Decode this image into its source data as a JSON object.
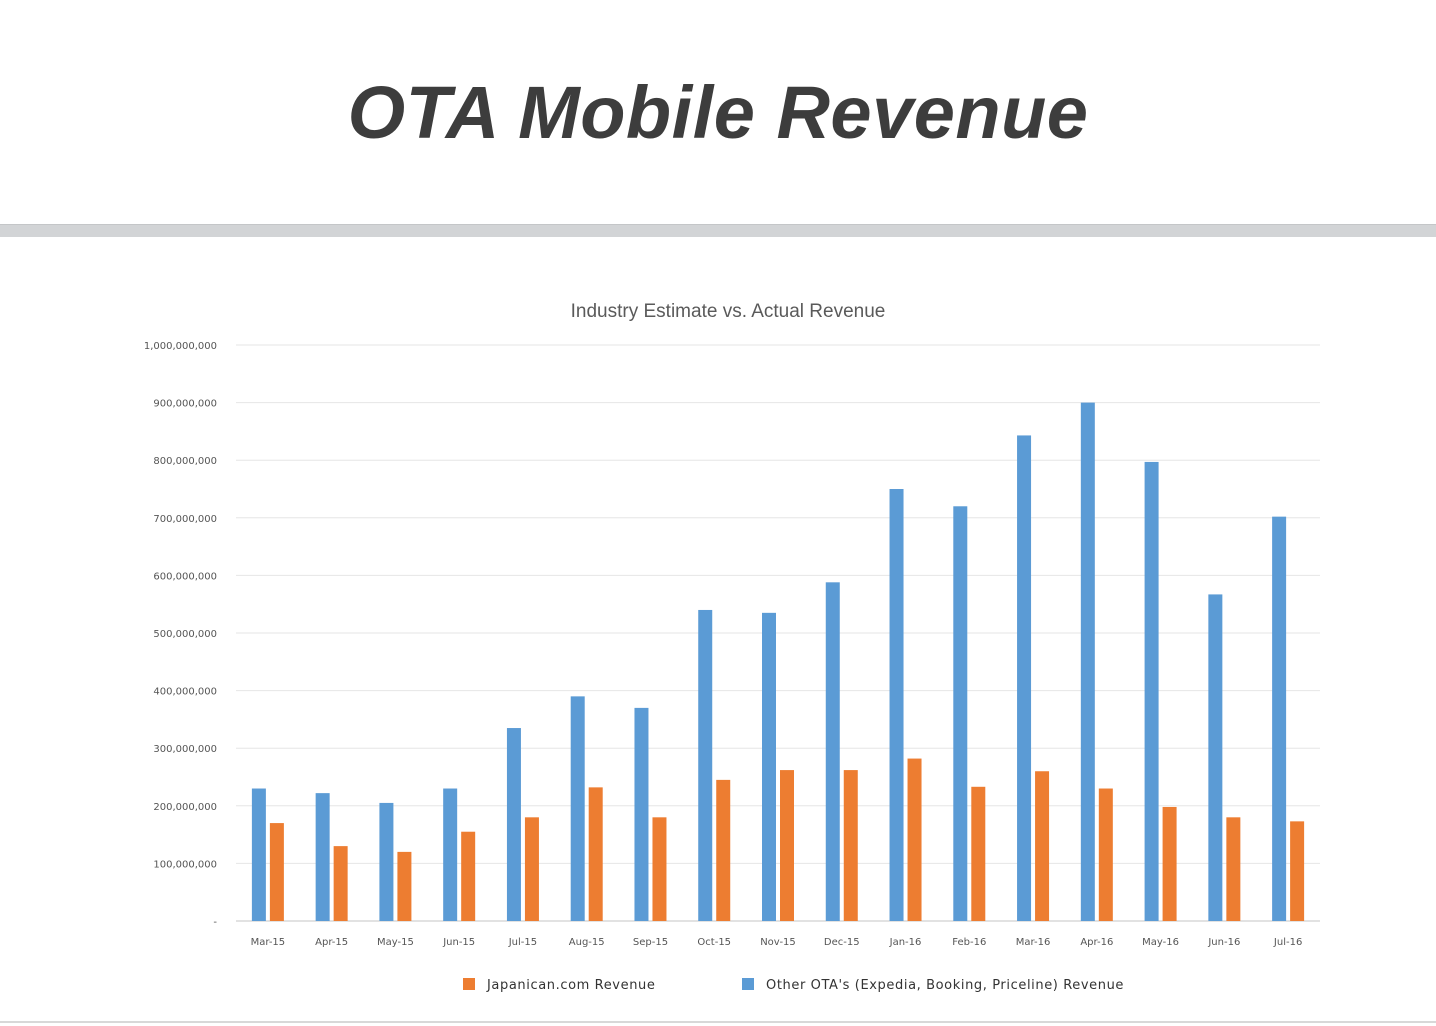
{
  "slide": {
    "title": "OTA Mobile Revenue"
  },
  "colors": {
    "japanican": "#ed7d31",
    "other": "#5b9bd5",
    "grid": "#e6e6e6",
    "title_text": "#3d3d3d"
  },
  "chart_data": {
    "type": "bar",
    "title": "Industry Estimate vs. Actual Revenue",
    "xlabel": "",
    "ylabel": "",
    "ylim": [
      0,
      1000000000
    ],
    "y_ticks": [
      0,
      100000000,
      200000000,
      300000000,
      400000000,
      500000000,
      600000000,
      700000000,
      800000000,
      900000000,
      1000000000
    ],
    "y_tick_labels": [
      "-",
      "100,000,000",
      "200,000,000",
      "300,000,000",
      "400,000,000",
      "500,000,000",
      "600,000,000",
      "700,000,000",
      "800,000,000",
      "900,000,000",
      "1,000,000,000"
    ],
    "grid": true,
    "legend_position": "bottom",
    "categories": [
      "Mar-15",
      "Apr-15",
      "May-15",
      "Jun-15",
      "Jul-15",
      "Aug-15",
      "Sep-15",
      "Oct-15",
      "Nov-15",
      "Dec-15",
      "Jan-16",
      "Feb-16",
      "Mar-16",
      "Apr-16",
      "May-16",
      "Jun-16",
      "Jul-16"
    ],
    "series": [
      {
        "name": "Other OTA's (Expedia, Booking, Priceline) Revenue",
        "color": "#5b9bd5",
        "values": [
          230000000,
          222000000,
          205000000,
          230000000,
          335000000,
          390000000,
          370000000,
          540000000,
          535000000,
          588000000,
          750000000,
          720000000,
          843000000,
          900000000,
          797000000,
          567000000,
          702000000
        ]
      },
      {
        "name": "Japanican.com Revenue",
        "color": "#ed7d31",
        "values": [
          170000000,
          130000000,
          120000000,
          155000000,
          180000000,
          232000000,
          180000000,
          245000000,
          262000000,
          262000000,
          282000000,
          233000000,
          260000000,
          230000000,
          198000000,
          180000000,
          173000000
        ]
      }
    ],
    "legend": [
      {
        "label": "Japanican.com Revenue",
        "color": "#ed7d31"
      },
      {
        "label": "Other OTA's (Expedia, Booking, Priceline) Revenue",
        "color": "#5b9bd5"
      }
    ]
  }
}
